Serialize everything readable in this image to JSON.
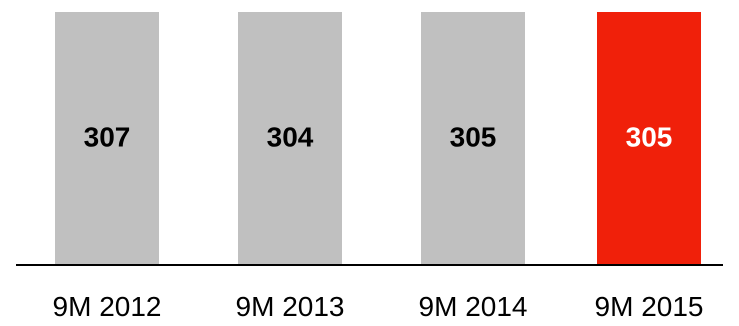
{
  "chart_data": {
    "type": "bar",
    "categories": [
      "9M 2012",
      "9M 2013",
      "9M 2014",
      "9M 2015"
    ],
    "values": [
      307,
      304,
      305,
      305
    ],
    "value_labels": [
      "307",
      "304",
      "305",
      "305"
    ],
    "bar_colors": [
      "#c0c0c0",
      "#c0c0c0",
      "#c0c0c0",
      "#f0200a"
    ],
    "label_colors": [
      "#000000",
      "#000000",
      "#000000",
      "#ffffff"
    ],
    "baseline_color": "#000000",
    "title": "",
    "xlabel": "",
    "ylabel": "",
    "grid": false,
    "legend": "none"
  }
}
